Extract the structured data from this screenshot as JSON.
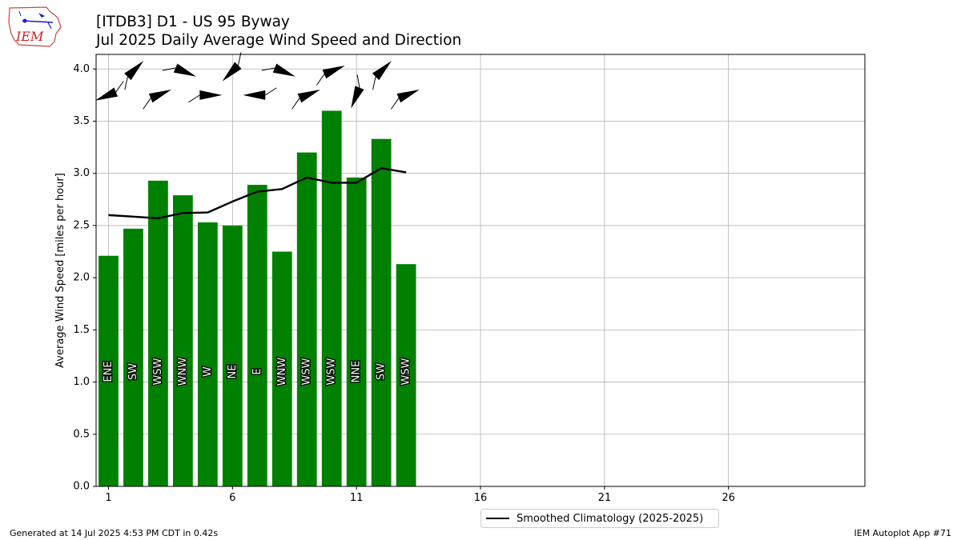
{
  "header": {
    "logo_text": "IEM",
    "title_line1": "[ITDB3] D1 - US 95 Byway",
    "title_line2": "Jul 2025 Daily Average Wind Speed and Direction"
  },
  "footer": {
    "generated": "Generated at 14 Jul 2025 4:53 PM CDT in 0.42s",
    "app": "IEM Autoplot App #71"
  },
  "legend": {
    "climatology_label": "Smoothed Climatology (2025-2025)"
  },
  "colors": {
    "bar": "#008000",
    "climatology_line": "#000000",
    "grid": "#b0b0b0",
    "logo": "#cc2222"
  },
  "chart_data": {
    "type": "bar",
    "title": "",
    "xlabel": "",
    "ylabel": "Average Wind Speed [miles per hour]",
    "xlim": [
      0.5,
      31.5
    ],
    "ylim": [
      0,
      4.14
    ],
    "grid": true,
    "legend_position": "bottom-center",
    "x_ticks": [
      1,
      6,
      11,
      16,
      21,
      26
    ],
    "y_ticks": [
      "0.0",
      "0.5",
      "1.0",
      "1.5",
      "2.0",
      "2.5",
      "3.0",
      "3.5",
      "4.0"
    ],
    "days": [
      1,
      2,
      3,
      4,
      5,
      6,
      7,
      8,
      9,
      10,
      11,
      12,
      13
    ],
    "values": [
      2.21,
      2.47,
      2.93,
      2.79,
      2.53,
      2.5,
      2.89,
      2.25,
      3.2,
      3.6,
      2.96,
      3.33,
      2.13
    ],
    "direction_labels": [
      "ENE",
      "SW",
      "WSW",
      "WNW",
      "W",
      "NE",
      "E",
      "WNW",
      "WSW",
      "WSW",
      "NNE",
      "SW",
      "WSW"
    ],
    "direction_degrees": [
      67.5,
      225,
      247.5,
      292.5,
      270,
      45,
      90,
      292.5,
      247.5,
      247.5,
      22.5,
      225,
      247.5
    ],
    "series": [
      {
        "name": "Smoothed Climatology (2025-2025)",
        "days": [
          1,
          2,
          3,
          4,
          5,
          6,
          7,
          8,
          9,
          10,
          11,
          12,
          13
        ],
        "values": [
          2.6,
          2.585,
          2.57,
          2.62,
          2.625,
          2.73,
          2.825,
          2.85,
          2.96,
          2.91,
          2.91,
          3.05,
          3.01
        ]
      }
    ]
  }
}
